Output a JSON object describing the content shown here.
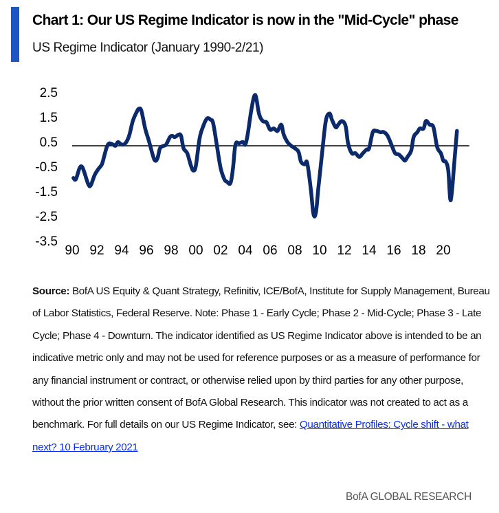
{
  "header": {
    "title": "Chart 1: Our US Regime Indicator is now in the \"Mid-Cycle\" phase",
    "subtitle": "US Regime Indicator (January 1990-2/21)",
    "accent_color": "#1f55c2"
  },
  "chart_data": {
    "type": "line",
    "title": "Chart 1: Our US Regime Indicator is now in the \"Mid-Cycle\" phase",
    "subtitle": "US Regime Indicator (January 1990-2/21)",
    "xlabel": "",
    "ylabel": "",
    "xlim": [
      1990,
      2022
    ],
    "ylim": [
      -3.5,
      2.5
    ],
    "yticks": [
      2.5,
      1.5,
      0.5,
      -0.5,
      -1.5,
      -2.5,
      -3.5
    ],
    "ytick_labels": [
      "2.5",
      "1.5",
      "0.5",
      "-0.5",
      "-1.5",
      "-2.5",
      "-3.5"
    ],
    "xticks": [
      1990,
      1992,
      1994,
      1996,
      1998,
      2000,
      2002,
      2004,
      2006,
      2008,
      2010,
      2012,
      2014,
      2016,
      2018,
      2020
    ],
    "xtick_labels": [
      "90",
      "92",
      "94",
      "96",
      "98",
      "00",
      "02",
      "04",
      "06",
      "08",
      "10",
      "12",
      "14",
      "16",
      "18",
      "20"
    ],
    "reference_line": 0,
    "grid": false,
    "legend": "none",
    "line_color": "#0b2a6b",
    "series": [
      {
        "name": "US Regime Indicator",
        "x": [
          1990.1,
          1990.3,
          1990.6,
          1990.8,
          1991.0,
          1991.3,
          1991.5,
          1991.8,
          1992.1,
          1992.4,
          1992.6,
          1992.8,
          1993.0,
          1993.3,
          1993.5,
          1993.7,
          1994.0,
          1994.3,
          1994.6,
          1994.9,
          1995.2,
          1995.4,
          1995.6,
          1995.9,
          1996.2,
          1996.5,
          1996.7,
          1996.9,
          1997.1,
          1997.4,
          1997.6,
          1997.9,
          1998.1,
          1998.3,
          1998.6,
          1998.8,
          1999.0,
          1999.3,
          1999.6,
          1999.8,
          2000.0,
          2000.3,
          2000.6,
          2000.9,
          2001.2,
          2001.4,
          2001.7,
          2002.0,
          2002.3,
          2002.5,
          2002.8,
          2003.0,
          2003.2,
          2003.5,
          2003.8,
          2004.0,
          2004.2,
          2004.5,
          2004.8,
          2005.1,
          2005.4,
          2005.7,
          2006.0,
          2006.3,
          2006.6,
          2006.9,
          2007.1,
          2007.4,
          2007.7,
          2008.0,
          2008.3,
          2008.5,
          2008.8,
          2009.0,
          2009.3,
          2009.5,
          2009.7,
          2009.9,
          2010.2,
          2010.5,
          2010.8,
          2011.0,
          2011.3,
          2011.5,
          2011.8,
          2012.1,
          2012.3,
          2012.6,
          2012.9,
          2013.2,
          2013.5,
          2013.8,
          2014.0,
          2014.3,
          2014.6,
          2014.9,
          2015.2,
          2015.5,
          2015.8,
          2016.1,
          2016.4,
          2016.7,
          2016.9,
          2017.1,
          2017.4,
          2017.6,
          2017.9,
          2018.1,
          2018.4,
          2018.6,
          2018.9,
          2019.2,
          2019.5,
          2019.8,
          2020.0,
          2020.2,
          2020.4,
          2020.6,
          2020.9,
          2021.1
        ],
        "values": [
          -1.3,
          -1.35,
          -0.9,
          -0.85,
          -1.1,
          -1.55,
          -1.6,
          -1.2,
          -0.95,
          -0.75,
          -0.4,
          -0.05,
          0.1,
          0.05,
          0.0,
          0.15,
          0.05,
          0.1,
          0.4,
          1.0,
          1.35,
          1.5,
          1.4,
          0.7,
          0.2,
          -0.35,
          -0.6,
          -0.5,
          -0.1,
          0.0,
          0.05,
          0.35,
          0.4,
          0.35,
          0.45,
          0.4,
          -0.1,
          -0.3,
          -0.8,
          -1.0,
          -0.8,
          0.3,
          0.8,
          1.1,
          1.05,
          0.9,
          0.0,
          -0.9,
          -1.35,
          -1.45,
          -1.5,
          -0.9,
          0.05,
          0.1,
          0.15,
          0.05,
          0.5,
          1.5,
          2.05,
          1.3,
          1.0,
          0.95,
          0.65,
          0.7,
          0.6,
          0.85,
          0.45,
          0.15,
          0.0,
          -0.1,
          -0.25,
          -0.65,
          -0.75,
          -0.7,
          -1.8,
          -2.75,
          -2.7,
          -1.7,
          -0.3,
          1.0,
          1.3,
          1.05,
          0.75,
          0.85,
          1.0,
          0.8,
          0.1,
          -0.3,
          -0.3,
          -0.45,
          -0.3,
          -0.15,
          -0.1,
          0.55,
          0.6,
          0.55,
          0.55,
          0.4,
          0.05,
          -0.3,
          -0.35,
          -0.5,
          -0.6,
          -0.45,
          -0.2,
          0.35,
          0.55,
          0.7,
          0.7,
          1.0,
          0.85,
          0.75,
          -0.05,
          -0.3,
          -0.6,
          -0.65,
          -1.0,
          -2.2,
          -0.6,
          0.6
        ]
      }
    ]
  },
  "notes": {
    "source_label": "Source:",
    "source_text": " BofA US Equity & Quant Strategy, Refinitiv, ICE/BofA, Institute for Supply Management, Bureau of Labor Statistics, Federal Reserve. Note: Phase 1 - Early Cycle; Phase 2 - Mid-Cycle; Phase 3 - Late Cycle; Phase 4 - Downturn. The indicator identified as US Regime Indicator above is intended to be an indicative metric only and may not be used for reference purposes or as a measure of performance for any financial instrument or contract, or otherwise relied upon by third parties for any other purpose, without the prior written consent of BofA Global Research. This indicator was not created to act as a benchmark. For full details on our US Regime Indicator, see: ",
    "link_text": "Quantitative Profiles: Cycle shift - what next? 10 February 2021",
    "link_color": "#0a2ee8"
  },
  "footer": {
    "brand": "BofA GLOBAL RESEARCH"
  }
}
